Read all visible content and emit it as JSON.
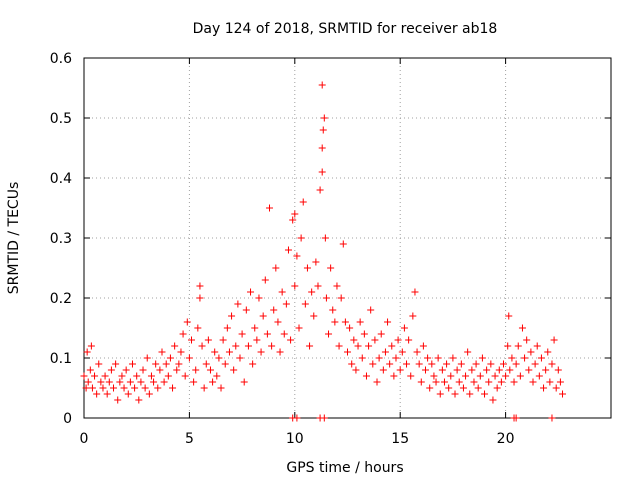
{
  "chart_data": {
    "type": "scatter",
    "title": "Day 124 of 2018, SRMTID for receiver ab18",
    "xlabel": "GPS time / hours",
    "ylabel": "SRMTID / TECUs",
    "xlim": [
      0,
      25
    ],
    "ylim": [
      0,
      0.6
    ],
    "xticks": [
      0,
      5,
      10,
      15,
      20
    ],
    "yticks": [
      0,
      0.1,
      0.2,
      0.3,
      0.4,
      0.5,
      0.6
    ],
    "xtick_labels": [
      "0",
      "5",
      "10",
      "15",
      "20"
    ],
    "ytick_labels": [
      "0",
      "0.1",
      "0.2",
      "0.3",
      "0.4",
      "0.5",
      "0.6"
    ],
    "grid": true,
    "marker": "plus",
    "series": [
      {
        "name": "SRMTID",
        "color": "#ff0000",
        "points": [
          [
            0.0,
            0.07
          ],
          [
            0.1,
            0.05
          ],
          [
            0.15,
            0.11
          ],
          [
            0.2,
            0.06
          ],
          [
            0.3,
            0.08
          ],
          [
            0.35,
            0.12
          ],
          [
            0.4,
            0.05
          ],
          [
            0.5,
            0.07
          ],
          [
            0.6,
            0.04
          ],
          [
            0.7,
            0.09
          ],
          [
            0.8,
            0.06
          ],
          [
            0.9,
            0.05
          ],
          [
            1.0,
            0.07
          ],
          [
            1.1,
            0.04
          ],
          [
            1.2,
            0.06
          ],
          [
            1.3,
            0.08
          ],
          [
            1.4,
            0.05
          ],
          [
            1.5,
            0.09
          ],
          [
            1.6,
            0.03
          ],
          [
            1.7,
            0.06
          ],
          [
            1.8,
            0.07
          ],
          [
            1.9,
            0.05
          ],
          [
            2.0,
            0.08
          ],
          [
            2.1,
            0.04
          ],
          [
            2.2,
            0.06
          ],
          [
            2.3,
            0.09
          ],
          [
            2.4,
            0.05
          ],
          [
            2.5,
            0.07
          ],
          [
            2.6,
            0.03
          ],
          [
            2.7,
            0.06
          ],
          [
            2.8,
            0.08
          ],
          [
            2.9,
            0.05
          ],
          [
            3.0,
            0.1
          ],
          [
            3.1,
            0.04
          ],
          [
            3.2,
            0.07
          ],
          [
            3.3,
            0.06
          ],
          [
            3.4,
            0.09
          ],
          [
            3.5,
            0.05
          ],
          [
            3.6,
            0.08
          ],
          [
            3.7,
            0.11
          ],
          [
            3.8,
            0.06
          ],
          [
            3.9,
            0.09
          ],
          [
            4.0,
            0.07
          ],
          [
            4.1,
            0.1
          ],
          [
            4.2,
            0.05
          ],
          [
            4.3,
            0.12
          ],
          [
            4.4,
            0.08
          ],
          [
            4.5,
            0.09
          ],
          [
            4.6,
            0.11
          ],
          [
            4.7,
            0.14
          ],
          [
            4.8,
            0.07
          ],
          [
            4.9,
            0.16
          ],
          [
            5.0,
            0.1
          ],
          [
            5.1,
            0.13
          ],
          [
            5.2,
            0.06
          ],
          [
            5.3,
            0.08
          ],
          [
            5.4,
            0.15
          ],
          [
            5.5,
            0.2
          ],
          [
            5.5,
            0.22
          ],
          [
            5.6,
            0.12
          ],
          [
            5.7,
            0.05
          ],
          [
            5.8,
            0.09
          ],
          [
            5.9,
            0.13
          ],
          [
            6.0,
            0.08
          ],
          [
            6.1,
            0.06
          ],
          [
            6.2,
            0.11
          ],
          [
            6.3,
            0.07
          ],
          [
            6.4,
            0.1
          ],
          [
            6.5,
            0.05
          ],
          [
            6.6,
            0.13
          ],
          [
            6.7,
            0.09
          ],
          [
            6.8,
            0.15
          ],
          [
            6.9,
            0.11
          ],
          [
            7.0,
            0.17
          ],
          [
            7.1,
            0.08
          ],
          [
            7.2,
            0.12
          ],
          [
            7.3,
            0.19
          ],
          [
            7.4,
            0.1
          ],
          [
            7.5,
            0.14
          ],
          [
            7.6,
            0.06
          ],
          [
            7.7,
            0.18
          ],
          [
            7.8,
            0.12
          ],
          [
            7.9,
            0.21
          ],
          [
            8.0,
            0.09
          ],
          [
            8.1,
            0.15
          ],
          [
            8.2,
            0.13
          ],
          [
            8.3,
            0.2
          ],
          [
            8.4,
            0.11
          ],
          [
            8.5,
            0.17
          ],
          [
            8.6,
            0.23
          ],
          [
            8.7,
            0.14
          ],
          [
            8.8,
            0.35
          ],
          [
            8.9,
            0.12
          ],
          [
            9.0,
            0.18
          ],
          [
            9.1,
            0.25
          ],
          [
            9.2,
            0.16
          ],
          [
            9.3,
            0.11
          ],
          [
            9.4,
            0.21
          ],
          [
            9.5,
            0.14
          ],
          [
            9.6,
            0.19
          ],
          [
            9.7,
            0.28
          ],
          [
            9.8,
            0.13
          ],
          [
            9.9,
            0.33
          ],
          [
            10.0,
            0.22
          ],
          [
            10.0,
            0.34
          ],
          [
            10.1,
            0.27
          ],
          [
            10.2,
            0.15
          ],
          [
            10.3,
            0.3
          ],
          [
            10.4,
            0.36
          ],
          [
            10.5,
            0.19
          ],
          [
            10.6,
            0.25
          ],
          [
            10.7,
            0.12
          ],
          [
            10.8,
            0.21
          ],
          [
            10.9,
            0.17
          ],
          [
            11.0,
            0.26
          ],
          [
            11.1,
            0.22
          ],
          [
            11.2,
            0.38
          ],
          [
            11.3,
            0.41
          ],
          [
            11.3,
            0.45
          ],
          [
            11.35,
            0.48
          ],
          [
            11.4,
            0.5
          ],
          [
            11.3,
            0.555
          ],
          [
            11.45,
            0.3
          ],
          [
            11.5,
            0.2
          ],
          [
            11.6,
            0.14
          ],
          [
            11.7,
            0.25
          ],
          [
            11.8,
            0.18
          ],
          [
            11.9,
            0.16
          ],
          [
            12.0,
            0.22
          ],
          [
            12.1,
            0.12
          ],
          [
            12.2,
            0.2
          ],
          [
            12.3,
            0.29
          ],
          [
            12.4,
            0.16
          ],
          [
            12.5,
            0.11
          ],
          [
            12.6,
            0.15
          ],
          [
            12.7,
            0.09
          ],
          [
            12.8,
            0.13
          ],
          [
            12.9,
            0.08
          ],
          [
            13.0,
            0.12
          ],
          [
            13.1,
            0.16
          ],
          [
            13.2,
            0.1
          ],
          [
            13.3,
            0.14
          ],
          [
            13.4,
            0.07
          ],
          [
            13.5,
            0.12
          ],
          [
            13.6,
            0.18
          ],
          [
            13.7,
            0.09
          ],
          [
            13.8,
            0.13
          ],
          [
            13.9,
            0.06
          ],
          [
            14.0,
            0.1
          ],
          [
            14.1,
            0.14
          ],
          [
            14.2,
            0.08
          ],
          [
            14.3,
            0.11
          ],
          [
            14.4,
            0.16
          ],
          [
            14.5,
            0.09
          ],
          [
            14.6,
            0.12
          ],
          [
            14.7,
            0.07
          ],
          [
            14.8,
            0.1
          ],
          [
            14.9,
            0.13
          ],
          [
            15.0,
            0.08
          ],
          [
            15.1,
            0.11
          ],
          [
            15.2,
            0.15
          ],
          [
            15.3,
            0.09
          ],
          [
            15.4,
            0.13
          ],
          [
            15.5,
            0.07
          ],
          [
            15.6,
            0.17
          ],
          [
            15.7,
            0.21
          ],
          [
            15.8,
            0.11
          ],
          [
            15.9,
            0.09
          ],
          [
            16.0,
            0.06
          ],
          [
            16.1,
            0.12
          ],
          [
            16.2,
            0.08
          ],
          [
            16.3,
            0.1
          ],
          [
            16.4,
            0.05
          ],
          [
            16.5,
            0.09
          ],
          [
            16.6,
            0.07
          ],
          [
            16.7,
            0.06
          ],
          [
            16.8,
            0.1
          ],
          [
            16.9,
            0.04
          ],
          [
            17.0,
            0.08
          ],
          [
            17.1,
            0.06
          ],
          [
            17.2,
            0.09
          ],
          [
            17.3,
            0.05
          ],
          [
            17.4,
            0.07
          ],
          [
            17.5,
            0.1
          ],
          [
            17.6,
            0.04
          ],
          [
            17.7,
            0.08
          ],
          [
            17.8,
            0.06
          ],
          [
            17.9,
            0.09
          ],
          [
            18.0,
            0.05
          ],
          [
            18.1,
            0.07
          ],
          [
            18.2,
            0.11
          ],
          [
            18.3,
            0.04
          ],
          [
            18.4,
            0.08
          ],
          [
            18.5,
            0.06
          ],
          [
            18.6,
            0.09
          ],
          [
            18.7,
            0.05
          ],
          [
            18.8,
            0.07
          ],
          [
            18.9,
            0.1
          ],
          [
            19.0,
            0.04
          ],
          [
            19.1,
            0.08
          ],
          [
            19.2,
            0.06
          ],
          [
            19.3,
            0.09
          ],
          [
            19.4,
            0.03
          ],
          [
            19.5,
            0.07
          ],
          [
            19.6,
            0.05
          ],
          [
            19.7,
            0.08
          ],
          [
            19.8,
            0.06
          ],
          [
            19.9,
            0.09
          ],
          [
            20.0,
            0.07
          ],
          [
            20.1,
            0.12
          ],
          [
            20.15,
            0.17
          ],
          [
            20.2,
            0.08
          ],
          [
            20.3,
            0.1
          ],
          [
            20.4,
            0.06
          ],
          [
            20.5,
            0.09
          ],
          [
            20.6,
            0.12
          ],
          [
            20.7,
            0.07
          ],
          [
            20.8,
            0.15
          ],
          [
            20.9,
            0.1
          ],
          [
            21.0,
            0.13
          ],
          [
            21.1,
            0.08
          ],
          [
            21.2,
            0.11
          ],
          [
            21.3,
            0.06
          ],
          [
            21.4,
            0.09
          ],
          [
            21.5,
            0.12
          ],
          [
            21.6,
            0.07
          ],
          [
            21.7,
            0.1
          ],
          [
            21.8,
            0.05
          ],
          [
            21.9,
            0.08
          ],
          [
            22.0,
            0.11
          ],
          [
            22.1,
            0.06
          ],
          [
            22.2,
            0.09
          ],
          [
            22.3,
            0.13
          ],
          [
            22.4,
            0.05
          ],
          [
            22.5,
            0.08
          ],
          [
            22.6,
            0.06
          ],
          [
            22.7,
            0.04
          ],
          [
            9.9,
            0.0
          ],
          [
            10.1,
            0.0
          ],
          [
            11.2,
            0.0
          ],
          [
            11.4,
            0.0
          ],
          [
            20.4,
            0.0
          ],
          [
            20.5,
            0.0
          ],
          [
            22.2,
            0.0
          ]
        ]
      }
    ]
  }
}
